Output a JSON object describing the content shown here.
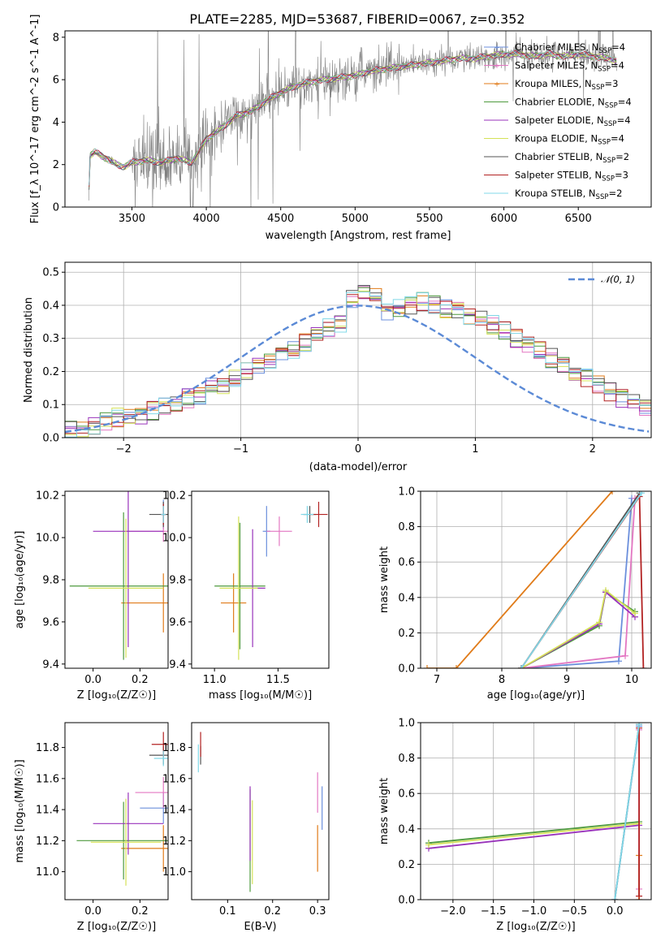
{
  "title": "PLATE=2285, MJD=53687, FIBERID=0067, z=0.352",
  "colors": {
    "Chabrier MILES": "#6b8fdc",
    "Salpeter MILES": "#e377c2",
    "Kroupa MILES": "#e07b19",
    "Chabrier ELODIE": "#4e9a3e",
    "Salpeter ELODIE": "#9933bb",
    "Kroupa ELODIE": "#d4e157",
    "Chabrier STELIB": "#555555",
    "Salpeter STELIB": "#b22222",
    "Kroupa STELIB": "#80d8e8",
    "data": "#808080",
    "normal": "#5b8ad6"
  },
  "chart_data": [
    {
      "id": "spectrum",
      "type": "line",
      "xlabel": "wavelength [Angstrom, rest frame]",
      "ylabel": "Flux [f_λ 10^-17 erg cm^-2 s^-1 A^-1]",
      "xlim": [
        3050,
        6990
      ],
      "ylim": [
        0,
        8.3
      ],
      "xticks": [
        3500,
        4000,
        4500,
        5000,
        5500,
        6000,
        6500
      ],
      "yticks": [
        0,
        2,
        4,
        6,
        8
      ],
      "legend_placement": "right",
      "legend": [
        {
          "label": "Chabrier MILES, N",
          "sub": "SSP",
          "suffix": "=4"
        },
        {
          "label": "Salpeter MILES, N",
          "sub": "SSP",
          "suffix": "=4"
        },
        {
          "label": "Kroupa MILES, N",
          "sub": "SSP",
          "suffix": "=3"
        },
        {
          "label": "Chabrier ELODIE, N",
          "sub": "SSP",
          "suffix": "=4"
        },
        {
          "label": "Salpeter ELODIE, N",
          "sub": "SSP",
          "suffix": "=4"
        },
        {
          "label": "Kroupa ELODIE, N",
          "sub": "SSP",
          "suffix": "=4"
        },
        {
          "label": "Chabrier STELIB, N",
          "sub": "SSP",
          "suffix": "=2"
        },
        {
          "label": "Salpeter STELIB, N",
          "sub": "SSP",
          "suffix": "=3"
        },
        {
          "label": "Kroupa STELIB, N",
          "sub": "SSP",
          "suffix": "=2"
        }
      ],
      "continuum": [
        [
          3210,
          0
        ],
        [
          3215,
          2.4
        ],
        [
          3250,
          2.6
        ],
        [
          3300,
          2.4
        ],
        [
          3350,
          2.2
        ],
        [
          3400,
          2.0
        ],
        [
          3450,
          1.9
        ],
        [
          3500,
          2.1
        ],
        [
          3600,
          2.2
        ],
        [
          3700,
          2.1
        ],
        [
          3800,
          2.3
        ],
        [
          3900,
          2.1
        ],
        [
          3950,
          2.6
        ],
        [
          4000,
          3.2
        ],
        [
          4100,
          3.7
        ],
        [
          4200,
          4.3
        ],
        [
          4300,
          4.5
        ],
        [
          4400,
          5.0
        ],
        [
          4500,
          5.4
        ],
        [
          4600,
          5.7
        ],
        [
          4700,
          5.9
        ],
        [
          4800,
          6.0
        ],
        [
          4900,
          6.1
        ],
        [
          5000,
          6.2
        ],
        [
          5100,
          6.4
        ],
        [
          5200,
          6.5
        ],
        [
          5300,
          6.6
        ],
        [
          5400,
          6.7
        ],
        [
          5500,
          6.8
        ],
        [
          5600,
          6.9
        ],
        [
          5700,
          7.0
        ],
        [
          5800,
          7.0
        ],
        [
          5900,
          7.1
        ],
        [
          6000,
          7.2
        ],
        [
          6100,
          7.2
        ],
        [
          6200,
          7.1
        ],
        [
          6300,
          7.2
        ],
        [
          6400,
          7.1
        ],
        [
          6500,
          7.2
        ],
        [
          6600,
          7.1
        ],
        [
          6700,
          7.0
        ],
        [
          6760,
          6.9
        ]
      ]
    },
    {
      "id": "residuals",
      "type": "line",
      "xlabel": "(data-model)/error",
      "ylabel": "Normed distribution",
      "xlim": [
        -2.5,
        2.5
      ],
      "ylim": [
        0,
        0.53
      ],
      "xticks": [
        -2,
        -1,
        0,
        1,
        2
      ],
      "yticks": [
        0.0,
        0.1,
        0.2,
        0.3,
        0.4,
        0.5
      ],
      "grid": true,
      "legend_placement": "top-right",
      "normal_label": "𝒩(0, 1)",
      "bin_width": 0.1,
      "bin_start": -2.5,
      "hist_base": [
        0.03,
        0.03,
        0.04,
        0.05,
        0.06,
        0.06,
        0.07,
        0.08,
        0.09,
        0.11,
        0.12,
        0.13,
        0.15,
        0.16,
        0.18,
        0.2,
        0.22,
        0.23,
        0.25,
        0.27,
        0.29,
        0.31,
        0.33,
        0.34,
        0.35,
        0.36,
        0.37,
        0.38,
        0.39,
        0.4,
        0.41,
        0.4,
        0.39,
        0.38,
        0.37,
        0.36,
        0.34,
        0.32,
        0.3,
        0.28,
        0.26,
        0.24,
        0.22,
        0.2,
        0.18,
        0.16,
        0.14,
        0.12,
        0.11,
        0.09,
        0.08,
        0.07,
        0.06,
        0.05,
        0.04,
        0.04,
        0.03,
        0.03,
        0.03,
        0.03
      ]
    },
    {
      "id": "age_vs_Z",
      "type": "scatter",
      "xlabel": "Z [log₁₀(Z/Z☉)]",
      "ylabel": "age  [log₁₀(age/yr)]",
      "xlim": [
        -0.12,
        0.32
      ],
      "ylim": [
        9.38,
        10.22
      ],
      "xticks": [
        0.0,
        0.2
      ],
      "yticks": [
        9.4,
        9.6,
        9.8,
        10.0,
        10.2
      ],
      "points": [
        {
          "m": "Chabrier MILES",
          "x": 0.3,
          "y": 10.11,
          "xerr": 0.01,
          "yerr": 0.07
        },
        {
          "m": "Salpeter MILES",
          "x": 0.3,
          "y": 10.03,
          "xerr": 0.16,
          "yerr": 0.05
        },
        {
          "m": "Kroupa MILES",
          "x": 0.3,
          "y": 9.69,
          "xerr": 0.18,
          "yerr": 0.14
        },
        {
          "m": "Chabrier ELODIE",
          "x": 0.13,
          "y": 9.77,
          "xerr": 0.23,
          "yerr": 0.35
        },
        {
          "m": "Salpeter ELODIE",
          "x": 0.15,
          "y": 10.03,
          "xerr": 0.15,
          "yerr": 0.55
        },
        {
          "m": "Kroupa ELODIE",
          "x": 0.14,
          "y": 9.76,
          "xerr": 0.16,
          "yerr": 0.33
        },
        {
          "m": "Chabrier STELIB",
          "x": 0.3,
          "y": 10.11,
          "xerr": 0.06,
          "yerr": 0.06
        },
        {
          "m": "Salpeter STELIB",
          "x": 0.3,
          "y": 10.11,
          "xerr": 0.01,
          "yerr": 0.05
        },
        {
          "m": "Kroupa STELIB",
          "x": 0.3,
          "y": 10.11,
          "xerr": 0.01,
          "yerr": 0.04
        }
      ]
    },
    {
      "id": "age_vs_mass",
      "type": "scatter",
      "xlabel": "mass [log₁₀(M/M☉)]",
      "ylabel": "",
      "xlim": [
        10.82,
        11.9
      ],
      "ylim": [
        9.38,
        10.22
      ],
      "xticks": [
        11.0,
        11.5
      ],
      "yticks": [
        9.4,
        9.6,
        9.8,
        10.0,
        10.2
      ],
      "points": [
        {
          "m": "Chabrier MILES",
          "x": 11.41,
          "y": 10.03,
          "xerr": 0.03,
          "yerr": 0.12
        },
        {
          "m": "Salpeter MILES",
          "x": 11.51,
          "y": 10.03,
          "xerr": 0.1,
          "yerr": 0.07
        },
        {
          "m": "Kroupa MILES",
          "x": 11.15,
          "y": 9.69,
          "xerr": 0.1,
          "yerr": 0.14
        },
        {
          "m": "Chabrier ELODIE",
          "x": 11.2,
          "y": 9.77,
          "xerr": 0.2,
          "yerr": 0.3
        },
        {
          "m": "Salpeter ELODIE",
          "x": 11.3,
          "y": 9.76,
          "xerr": 0.1,
          "yerr": 0.28
        },
        {
          "m": "Kroupa ELODIE",
          "x": 11.19,
          "y": 9.76,
          "xerr": 0.15,
          "yerr": 0.34
        },
        {
          "m": "Chabrier STELIB",
          "x": 11.75,
          "y": 10.11,
          "xerr": 0.05,
          "yerr": 0.04
        },
        {
          "m": "Salpeter STELIB",
          "x": 11.82,
          "y": 10.11,
          "xerr": 0.07,
          "yerr": 0.06
        },
        {
          "m": "Kroupa STELIB",
          "x": 11.73,
          "y": 10.11,
          "xerr": 0.05,
          "yerr": 0.04
        }
      ]
    },
    {
      "id": "weight_vs_age",
      "type": "line",
      "xlabel": "age  [log₁₀(age/yr)]",
      "ylabel": "mass weight",
      "xlim": [
        6.75,
        10.3
      ],
      "ylim": [
        0.0,
        1.0
      ],
      "xticks": [
        7,
        8,
        9,
        10
      ],
      "yticks": [
        0.0,
        0.2,
        0.4,
        0.6,
        0.8,
        1.0
      ],
      "grid": true,
      "series": [
        {
          "m": "Chabrier MILES",
          "x": [
            8.3,
            9.8,
            10.0
          ],
          "y": [
            0.0,
            0.04,
            0.96
          ]
        },
        {
          "m": "Salpeter MILES",
          "x": [
            8.3,
            9.9,
            10.05
          ],
          "y": [
            0.0,
            0.07,
            0.96
          ]
        },
        {
          "m": "Kroupa MILES",
          "x": [
            6.85,
            7.3,
            9.7
          ],
          "y": [
            0.0,
            0.0,
            1.0
          ]
        },
        {
          "m": "Chabrier ELODIE",
          "x": [
            8.3,
            9.5,
            9.6,
            10.05
          ],
          "y": [
            0.0,
            0.24,
            0.43,
            0.32
          ]
        },
        {
          "m": "Salpeter ELODIE",
          "x": [
            8.3,
            9.5,
            9.6,
            10.05
          ],
          "y": [
            0.0,
            0.25,
            0.43,
            0.29
          ]
        },
        {
          "m": "Kroupa ELODIE",
          "x": [
            8.3,
            9.5,
            9.6,
            10.05
          ],
          "y": [
            0.0,
            0.26,
            0.44,
            0.31
          ]
        },
        {
          "m": "Chabrier STELIB",
          "x": [
            8.3,
            10.12
          ],
          "y": [
            0.0,
            0.99
          ]
        },
        {
          "m": "Salpeter STELIB",
          "x": [
            8.3,
            10.12,
            10.18
          ],
          "y": [
            0.0,
            0.97,
            0.0
          ]
        },
        {
          "m": "Kroupa STELIB",
          "x": [
            8.3,
            10.15
          ],
          "y": [
            0.0,
            0.99
          ]
        }
      ]
    },
    {
      "id": "mass_vs_Z",
      "type": "scatter",
      "xlabel": "Z [log₁₀(Z/Z☉)]",
      "ylabel": "mass [log₁₀(M/M☉)]",
      "xlim": [
        -0.12,
        0.32
      ],
      "ylim": [
        10.82,
        11.96
      ],
      "xticks": [
        0.0,
        0.2
      ],
      "yticks": [
        11.0,
        11.2,
        11.4,
        11.6,
        11.8
      ],
      "points": [
        {
          "m": "Chabrier MILES",
          "x": 0.3,
          "y": 11.41,
          "xerr": 0.1,
          "yerr": 0.1
        },
        {
          "m": "Salpeter MILES",
          "x": 0.3,
          "y": 11.51,
          "xerr": 0.12,
          "yerr": 0.1
        },
        {
          "m": "Kroupa MILES",
          "x": 0.3,
          "y": 11.15,
          "xerr": 0.18,
          "yerr": 0.15
        },
        {
          "m": "Chabrier ELODIE",
          "x": 0.13,
          "y": 11.2,
          "xerr": 0.2,
          "yerr": 0.25
        },
        {
          "m": "Salpeter ELODIE",
          "x": 0.15,
          "y": 11.31,
          "xerr": 0.15,
          "yerr": 0.2
        },
        {
          "m": "Kroupa ELODIE",
          "x": 0.14,
          "y": 11.19,
          "xerr": 0.15,
          "yerr": 0.28
        },
        {
          "m": "Chabrier STELIB",
          "x": 0.3,
          "y": 11.75,
          "xerr": 0.06,
          "yerr": 0.06
        },
        {
          "m": "Salpeter STELIB",
          "x": 0.3,
          "y": 11.82,
          "xerr": 0.05,
          "yerr": 0.08
        },
        {
          "m": "Kroupa STELIB",
          "x": 0.3,
          "y": 11.73,
          "xerr": 0.04,
          "yerr": 0.05
        }
      ]
    },
    {
      "id": "mass_vs_EBV",
      "type": "scatter",
      "xlabel": "E(B-V)",
      "ylabel": "",
      "xlim": [
        0.02,
        0.325
      ],
      "ylim": [
        10.82,
        11.96
      ],
      "xticks": [
        0.1,
        0.2,
        0.3
      ],
      "yticks": [
        11.0,
        11.2,
        11.4,
        11.6,
        11.8
      ],
      "points": [
        {
          "m": "Chabrier MILES",
          "x": 0.31,
          "y": 11.41,
          "xerr": 0.0,
          "yerr": 0.14
        },
        {
          "m": "Salpeter MILES",
          "x": 0.3,
          "y": 11.51,
          "xerr": 0.0,
          "yerr": 0.13
        },
        {
          "m": "Kroupa MILES",
          "x": 0.3,
          "y": 11.15,
          "xerr": 0.0,
          "yerr": 0.15
        },
        {
          "m": "Chabrier ELODIE",
          "x": 0.15,
          "y": 11.2,
          "xerr": 0.0,
          "yerr": 0.33
        },
        {
          "m": "Salpeter ELODIE",
          "x": 0.15,
          "y": 11.31,
          "xerr": 0.0,
          "yerr": 0.24
        },
        {
          "m": "Kroupa ELODIE",
          "x": 0.155,
          "y": 11.19,
          "xerr": 0.0,
          "yerr": 0.27
        },
        {
          "m": "Chabrier STELIB",
          "x": 0.04,
          "y": 11.75,
          "xerr": 0.0,
          "yerr": 0.06
        },
        {
          "m": "Salpeter STELIB",
          "x": 0.04,
          "y": 11.82,
          "xerr": 0.0,
          "yerr": 0.08
        },
        {
          "m": "Kroupa STELIB",
          "x": 0.035,
          "y": 11.73,
          "xerr": 0.0,
          "yerr": 0.09
        }
      ]
    },
    {
      "id": "weight_vs_Z",
      "type": "line",
      "xlabel": "Z [log₁₀(Z/Z☉)]",
      "ylabel": "mass weight",
      "xlim": [
        -2.4,
        0.45
      ],
      "ylim": [
        0.0,
        1.0
      ],
      "xticks": [
        -2.0,
        -1.5,
        -1.0,
        -0.5,
        0.0
      ],
      "yticks": [
        0.0,
        0.2,
        0.4,
        0.6,
        0.8,
        1.0
      ],
      "grid": true,
      "series": [
        {
          "m": "Chabrier MILES",
          "x": [
            0.0,
            0.3
          ],
          "y": [
            0.0,
            0.98
          ]
        },
        {
          "m": "Salpeter MILES",
          "x": [
            0.3,
            0.3
          ],
          "y": [
            0.06,
            0.96
          ]
        },
        {
          "m": "Kroupa MILES",
          "x": [
            0.3,
            0.3
          ],
          "y": [
            0.0,
            0.25
          ]
        },
        {
          "m": "Chabrier ELODIE",
          "x": [
            -2.3,
            0.3
          ],
          "y": [
            0.32,
            0.44
          ]
        },
        {
          "m": "Salpeter ELODIE",
          "x": [
            -2.3,
            0.3
          ],
          "y": [
            0.29,
            0.42
          ]
        },
        {
          "m": "Kroupa ELODIE",
          "x": [
            -2.3,
            0.3
          ],
          "y": [
            0.31,
            0.43
          ]
        },
        {
          "m": "Chabrier STELIB",
          "x": [
            0.0,
            0.3
          ],
          "y": [
            0.0,
            0.99
          ]
        },
        {
          "m": "Salpeter STELIB",
          "x": [
            0.3,
            0.3
          ],
          "y": [
            0.02,
            0.97
          ]
        },
        {
          "m": "Kroupa STELIB",
          "x": [
            0.0,
            0.3
          ],
          "y": [
            0.0,
            0.99
          ]
        }
      ]
    }
  ]
}
